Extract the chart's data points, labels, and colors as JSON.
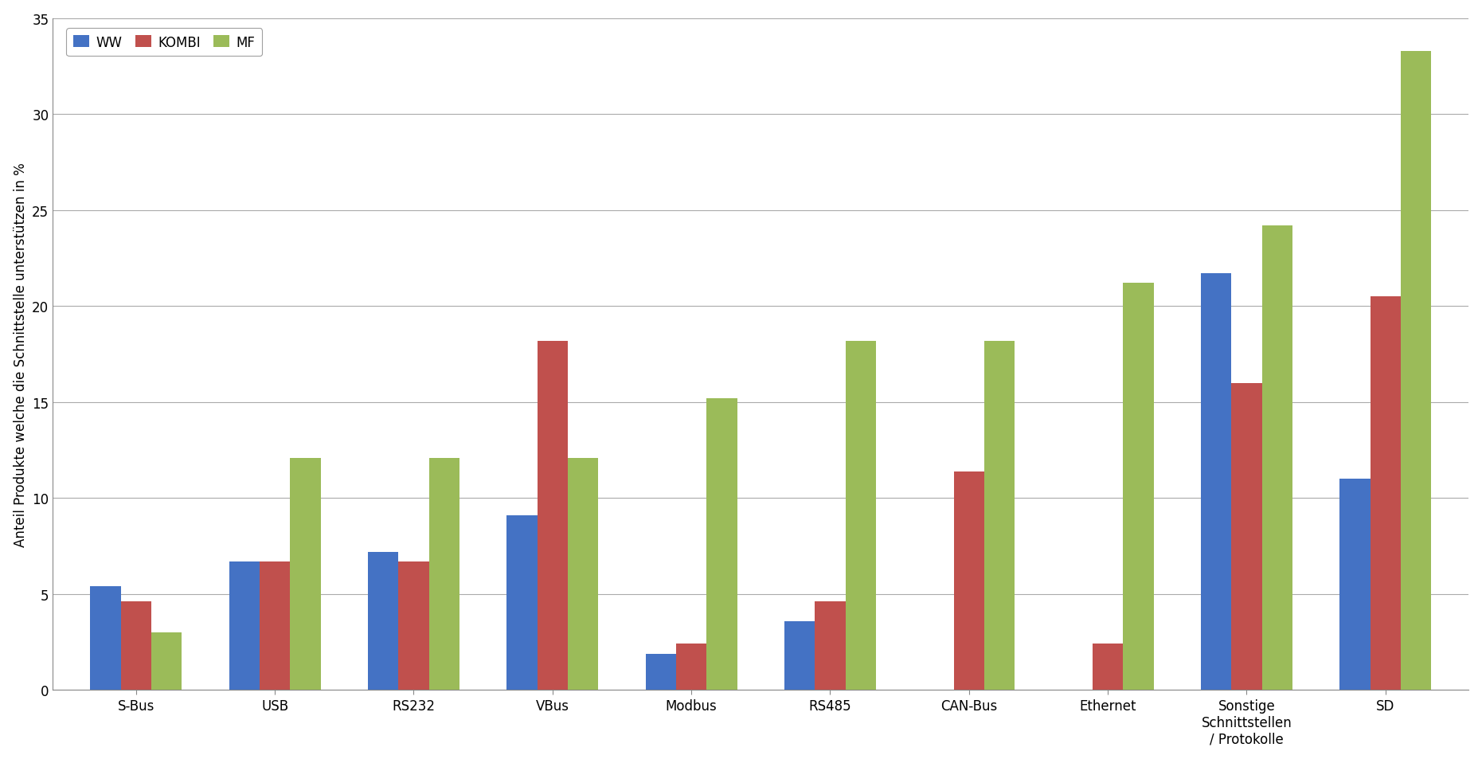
{
  "categories": [
    "S-Bus",
    "USB",
    "RS232",
    "VBus",
    "Modbus",
    "RS485",
    "CAN-Bus",
    "Ethernet",
    "Sonstige\nSchnittstellen\n/ Protokolle",
    "SD"
  ],
  "series": {
    "WW": [
      5.4,
      6.7,
      7.2,
      9.1,
      1.9,
      3.6,
      0.0,
      0.0,
      21.7,
      11.0
    ],
    "KOMBI": [
      4.6,
      6.7,
      6.7,
      18.2,
      2.4,
      4.6,
      11.4,
      2.4,
      16.0,
      20.5
    ],
    "MF": [
      3.0,
      12.1,
      12.1,
      12.1,
      15.2,
      18.2,
      18.2,
      21.2,
      24.2,
      33.3
    ]
  },
  "colors": {
    "WW": "#4472C4",
    "KOMBI": "#C0504D",
    "MF": "#9BBB59"
  },
  "ylabel": "Anteil Produkte welche die Schnittstelle unterstützen in %",
  "ylim": [
    0,
    35
  ],
  "yticks": [
    0,
    5,
    10,
    15,
    20,
    25,
    30,
    35
  ],
  "bar_width": 0.22,
  "background_color": "#FFFFFF",
  "grid_color": "#AAAAAA",
  "spine_color": "#888888",
  "legend_labels": [
    "WW",
    "KOMBI",
    "MF"
  ],
  "tick_fontsize": 12,
  "ylabel_fontsize": 12,
  "legend_fontsize": 12
}
